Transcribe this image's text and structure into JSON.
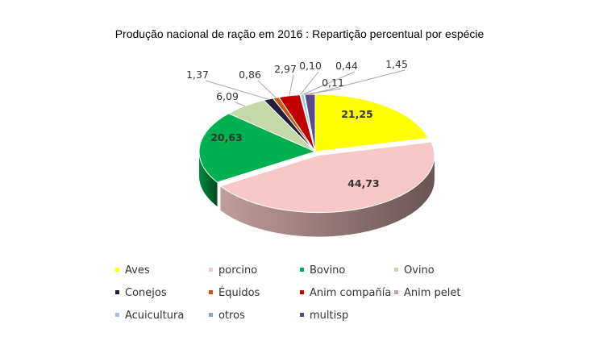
{
  "chart_data": {
    "type": "pie",
    "title": "Produção nacional de ração em 2016 : Repartição percentual por espécie",
    "categories": [
      "Aves",
      "porcino",
      "Bovino",
      "Ovino",
      "Conejos",
      "Équidos",
      "Anim compañía",
      "Anim pelet",
      "Acuicultura",
      "otros",
      "multisp"
    ],
    "values": [
      21.25,
      44.73,
      20.63,
      6.09,
      1.37,
      0.86,
      2.97,
      0.1,
      0.44,
      0.11,
      1.45
    ],
    "labels": [
      "21,25",
      "44,73",
      "20,63",
      "6,09",
      "1,37",
      "0,86",
      "2,97",
      "0,10",
      "0,44",
      "0,11",
      "1,45"
    ],
    "colors": [
      "#FFFF00",
      "#F8C8C8",
      "#00B050",
      "#C4D8A8",
      "#1F1F3A",
      "#C55A11",
      "#C00000",
      "#C8A0A0",
      "#9DC3E6",
      "#7FA7D1",
      "#5B4A8A"
    ],
    "legend_position": "bottom",
    "style": "3d-pie",
    "exploded": "porcino"
  }
}
